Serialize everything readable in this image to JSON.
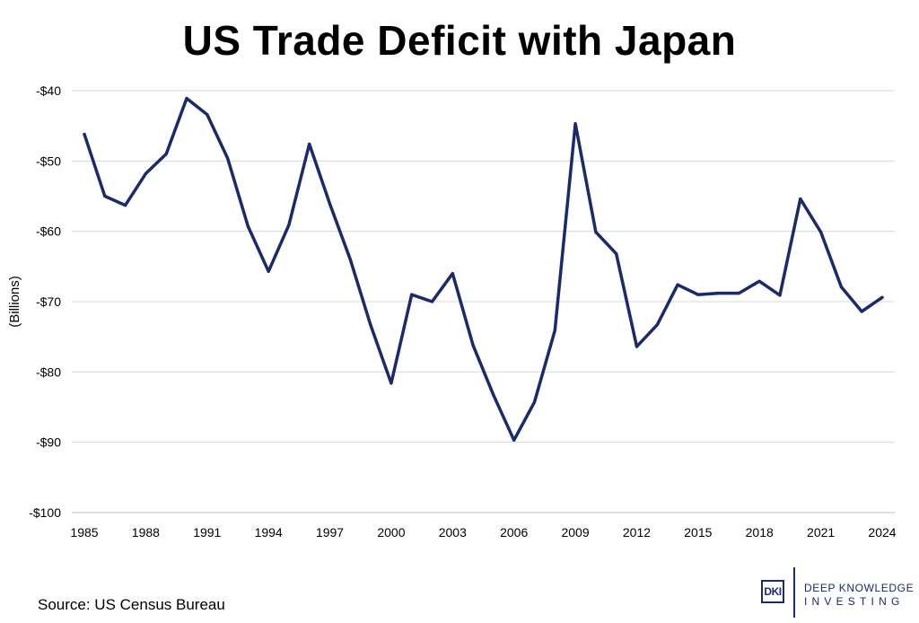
{
  "chart_data": {
    "type": "line",
    "title": "US Trade Deficit with Japan",
    "ylabel": "(Billions)",
    "xlabel": "",
    "ylim": [
      -100,
      -40
    ],
    "xlim": [
      1985,
      2024
    ],
    "yticks": [
      -40,
      -50,
      -60,
      -70,
      -80,
      -90,
      -100
    ],
    "ytick_labels": [
      "-$40",
      "-$50",
      "-$60",
      "-$70",
      "-$80",
      "-$90",
      "-$100"
    ],
    "xticks": [
      1985,
      1988,
      1991,
      1994,
      1997,
      2000,
      2003,
      2006,
      2009,
      2012,
      2015,
      2018,
      2021,
      2024
    ],
    "xtick_labels": [
      "1985",
      "1988",
      "1991",
      "1994",
      "1997",
      "2000",
      "2003",
      "2006",
      "2009",
      "2012",
      "2015",
      "2018",
      "2021",
      "2024"
    ],
    "grid": true,
    "line_color": "#1b2a6b",
    "series": [
      {
        "x": [
          1985,
          1986,
          1987,
          1988,
          1989,
          1990,
          1991,
          1992,
          1993,
          1994,
          1995,
          1996,
          1997,
          1998,
          1999,
          2000,
          2001,
          2002,
          2003,
          2004,
          2005,
          2006,
          2007,
          2008,
          2009,
          2010,
          2011,
          2012,
          2013,
          2014,
          2015,
          2016,
          2017,
          2018,
          2019,
          2020,
          2021,
          2022,
          2023,
          2024
        ],
        "values": [
          -46.2,
          -55.0,
          -56.3,
          -51.8,
          -49.0,
          -41.1,
          -43.4,
          -49.6,
          -59.3,
          -65.7,
          -59.1,
          -47.6,
          -56.1,
          -64.0,
          -73.4,
          -81.6,
          -69.0,
          -70.0,
          -66.0,
          -76.2,
          -83.3,
          -89.7,
          -84.3,
          -74.1,
          -44.7,
          -60.1,
          -63.2,
          -76.4,
          -73.3,
          -67.6,
          -69.0,
          -68.8,
          -68.8,
          -67.1,
          -69.1,
          -55.4,
          -60.1,
          -67.9,
          -71.4,
          -69.4
        ]
      }
    ]
  },
  "source": {
    "text": "Source: US Census Bureau"
  },
  "logo": {
    "mark": "DKI",
    "line1": "DEEP KNOWLEDGE",
    "line2": "INVESTING",
    "color": "#1b2a6b"
  }
}
